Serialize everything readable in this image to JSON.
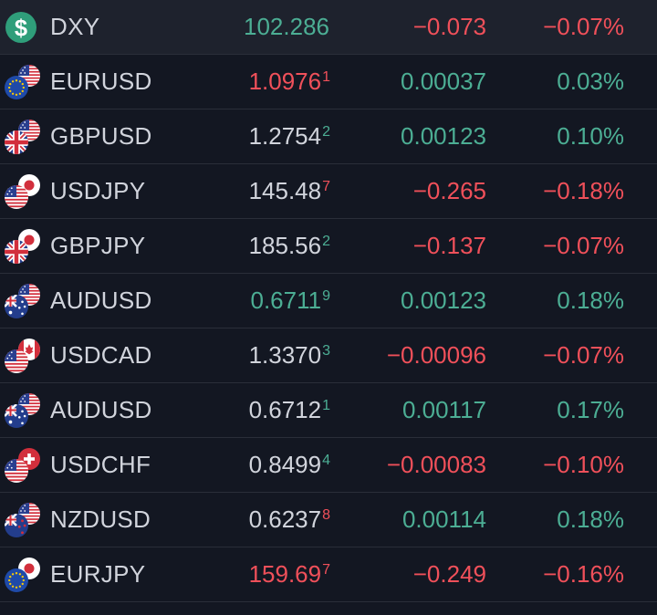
{
  "colors": {
    "up": "#4cae94",
    "down": "#f0505a",
    "neutral": "#d1d4dc",
    "background": "#131722",
    "divider": "#2a2e39"
  },
  "rows": [
    {
      "symbol": "DXY",
      "price_main": "102.286",
      "price_tail": "",
      "price_dir": "up",
      "tail_dir": "up",
      "change": "−0.073",
      "change_dir": "down",
      "percent": "−0.07%",
      "icons": [
        "dollar"
      ]
    },
    {
      "symbol": "EURUSD",
      "price_main": "1.0976",
      "price_tail": "1",
      "price_dir": "down",
      "tail_dir": "down",
      "change": "0.00037",
      "change_dir": "up",
      "percent": "0.03%",
      "icons": [
        "eu-flag",
        "us-flag"
      ]
    },
    {
      "symbol": "GBPUSD",
      "price_main": "1.2754",
      "price_tail": "2",
      "price_dir": "neutral",
      "tail_dir": "up",
      "change": "0.00123",
      "change_dir": "up",
      "percent": "0.10%",
      "icons": [
        "uk-flag",
        "us-flag"
      ]
    },
    {
      "symbol": "USDJPY",
      "price_main": "145.48",
      "price_tail": "7",
      "price_dir": "neutral",
      "tail_dir": "down",
      "change": "−0.265",
      "change_dir": "down",
      "percent": "−0.18%",
      "icons": [
        "us-flag",
        "jp-flag"
      ]
    },
    {
      "symbol": "GBPJPY",
      "price_main": "185.56",
      "price_tail": "2",
      "price_dir": "neutral",
      "tail_dir": "up",
      "change": "−0.137",
      "change_dir": "down",
      "percent": "−0.07%",
      "icons": [
        "uk-flag",
        "jp-flag"
      ]
    },
    {
      "symbol": "AUDUSD",
      "price_main": "0.6711",
      "price_tail": "9",
      "price_dir": "up",
      "tail_dir": "up",
      "change": "0.00123",
      "change_dir": "up",
      "percent": "0.18%",
      "icons": [
        "au-flag",
        "us-flag"
      ]
    },
    {
      "symbol": "USDCAD",
      "price_main": "1.3370",
      "price_tail": "3",
      "price_dir": "neutral",
      "tail_dir": "up",
      "change": "−0.00096",
      "change_dir": "down",
      "percent": "−0.07%",
      "icons": [
        "us-flag",
        "ca-flag"
      ]
    },
    {
      "symbol": "AUDUSD",
      "price_main": "0.6712",
      "price_tail": "1",
      "price_dir": "neutral",
      "tail_dir": "up",
      "change": "0.00117",
      "change_dir": "up",
      "percent": "0.17%",
      "icons": [
        "au-flag",
        "us-flag"
      ]
    },
    {
      "symbol": "USDCHF",
      "price_main": "0.8499",
      "price_tail": "4",
      "price_dir": "neutral",
      "tail_dir": "up",
      "change": "−0.00083",
      "change_dir": "down",
      "percent": "−0.10%",
      "icons": [
        "us-flag",
        "ch-flag"
      ]
    },
    {
      "symbol": "NZDUSD",
      "price_main": "0.6237",
      "price_tail": "8",
      "price_dir": "neutral",
      "tail_dir": "down",
      "change": "0.00114",
      "change_dir": "up",
      "percent": "0.18%",
      "icons": [
        "nz-flag",
        "us-flag"
      ]
    },
    {
      "symbol": "EURJPY",
      "price_main": "159.69",
      "price_tail": "7",
      "price_dir": "down",
      "tail_dir": "down",
      "change": "−0.249",
      "change_dir": "down",
      "percent": "−0.16%",
      "icons": [
        "eu-flag",
        "jp-flag"
      ]
    }
  ]
}
